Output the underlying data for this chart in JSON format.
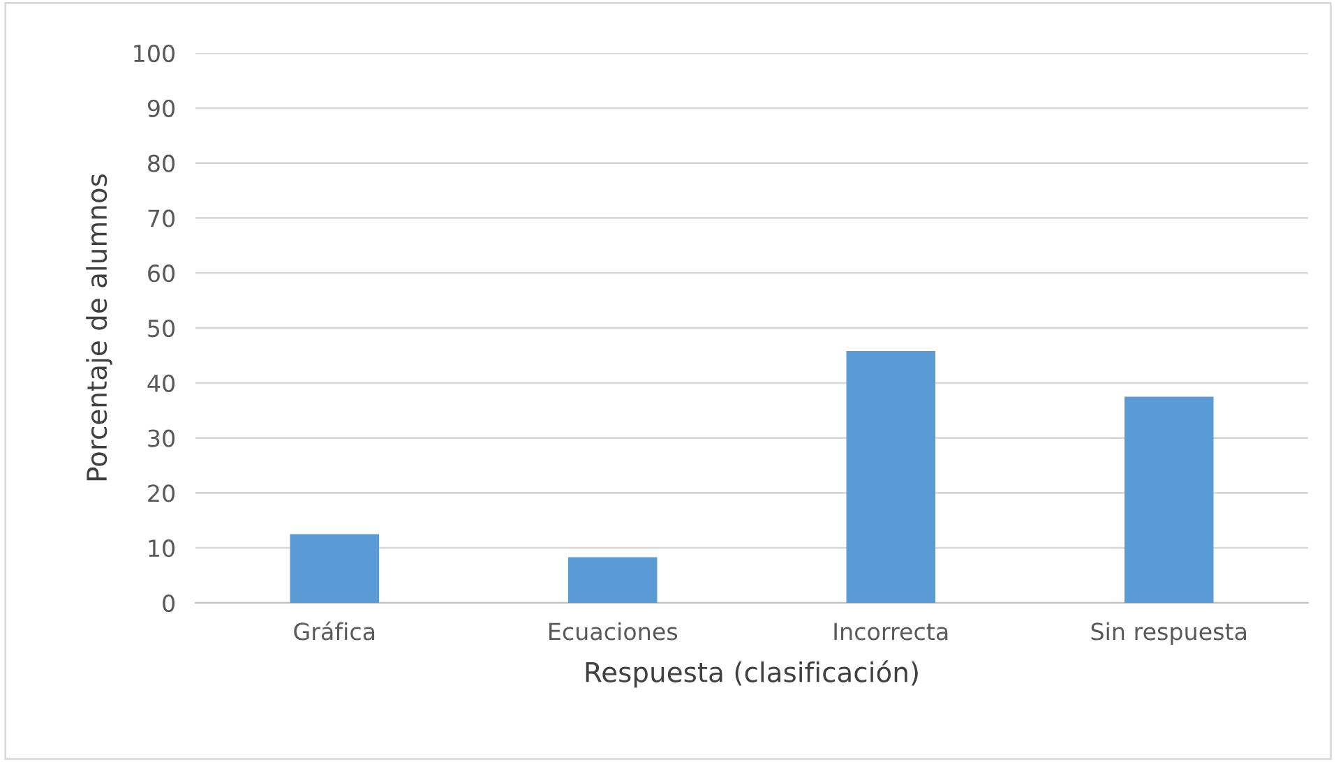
{
  "chart_data": {
    "type": "bar",
    "xlabel": "Respuesta (clasificación)",
    "ylabel": "Porcentaje de alumnos",
    "categories": [
      "Gráfica",
      "Ecuaciones",
      "Incorrecta",
      "Sin respuesta"
    ],
    "values": [
      12.5,
      8.3,
      45.8,
      37.5
    ],
    "color": "#5b9bd5",
    "ylim": [
      0,
      100
    ],
    "yticks": [
      0,
      10,
      20,
      30,
      40,
      50,
      60,
      70,
      80,
      90,
      100
    ],
    "grid": "y",
    "legend": false
  }
}
